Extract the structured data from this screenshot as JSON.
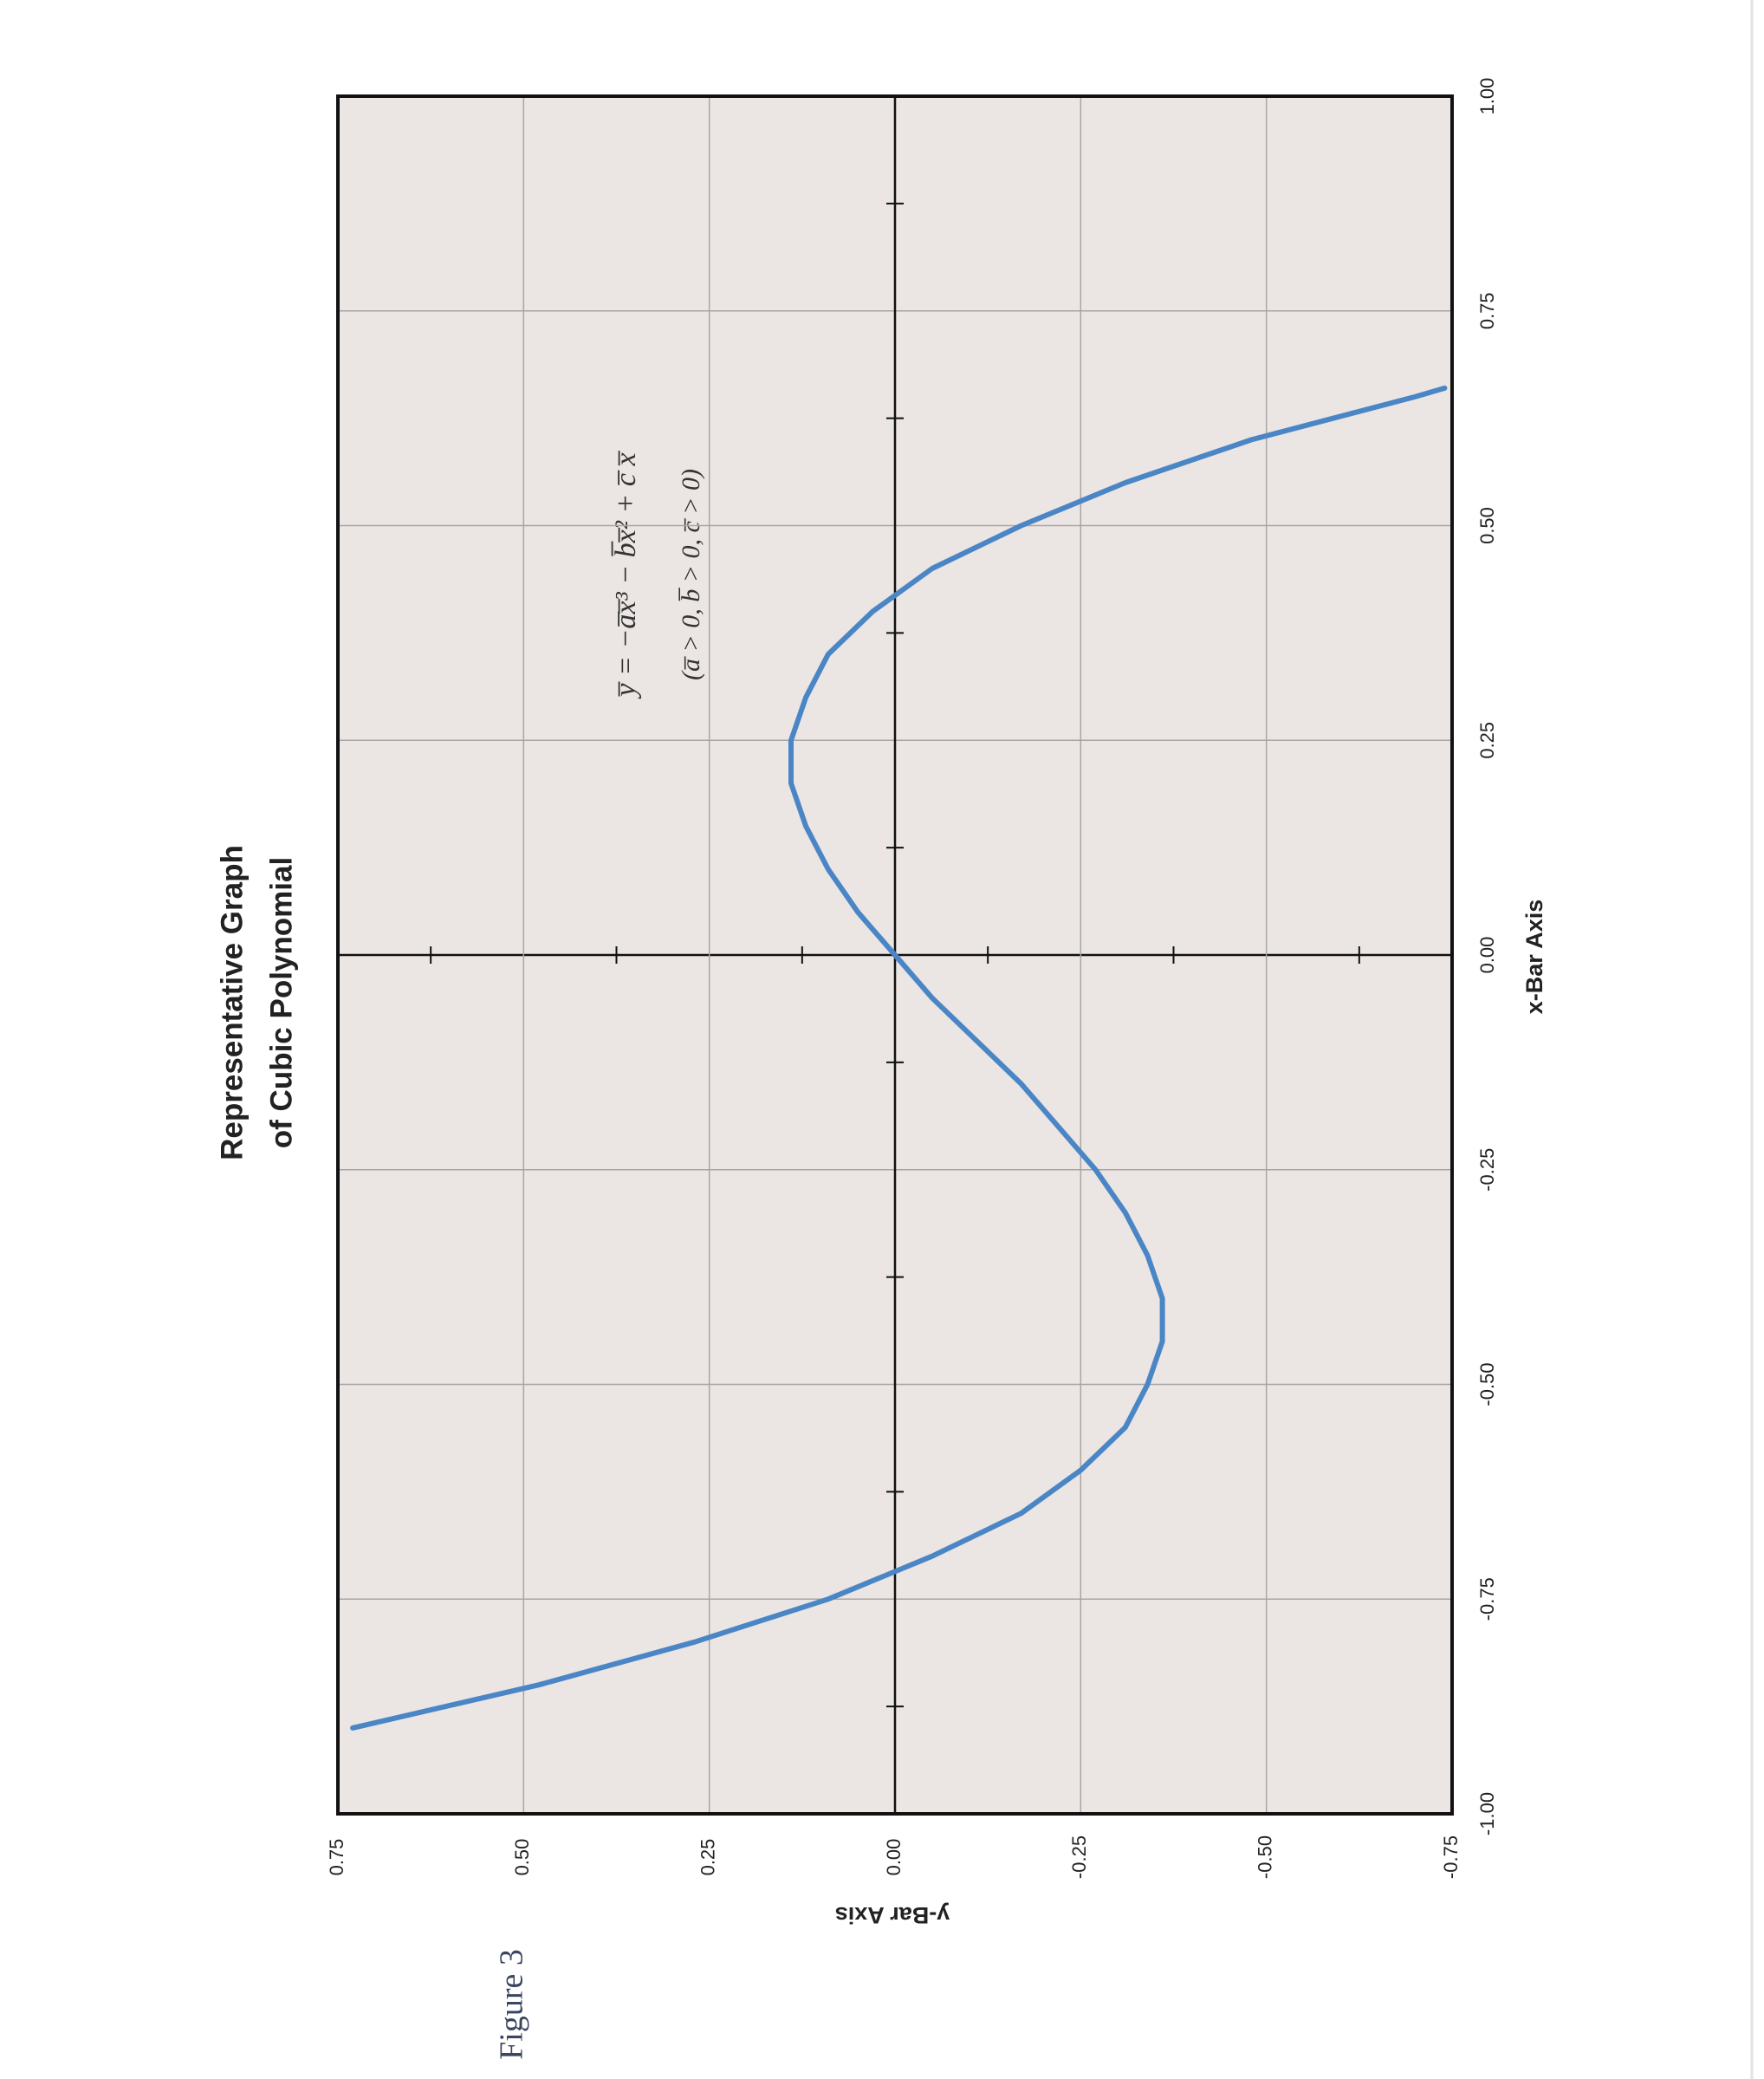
{
  "chart_data": {
    "type": "line",
    "title": [
      "Representative Graph",
      "of Cubic Polynomial"
    ],
    "x_label": "x-Bar Axis",
    "y_label": "y-Bar Axis",
    "annotations": [
      "y̅ = −a̅x̅³ − b̅x̅² + c̅ x̅",
      "(a̅ > 0, b̅ > 0, c̅ > 0)"
    ],
    "caption": "Figure 3",
    "x": [
      -0.9,
      -0.85,
      -0.8,
      -0.75,
      -0.7,
      -0.65,
      -0.6,
      -0.55,
      -0.5,
      -0.45,
      -0.4,
      -0.35,
      -0.3,
      -0.25,
      -0.2,
      -0.15,
      -0.1,
      -0.05,
      0,
      0.05,
      0.1,
      0.15,
      0.2,
      0.25,
      0.3,
      0.35,
      0.4,
      0.45,
      0.5,
      0.55,
      0.6,
      0.65,
      0.66
    ],
    "values": [
      0.73,
      0.48,
      0.27,
      0.09,
      -0.05,
      -0.17,
      -0.25,
      -0.31,
      -0.34,
      -0.36,
      -0.36,
      -0.34,
      -0.31,
      -0.27,
      -0.22,
      -0.17,
      -0.11,
      -0.05,
      0,
      0.05,
      0.09,
      0.12,
      0.14,
      0.14,
      0.12,
      0.09,
      0.03,
      -0.05,
      -0.17,
      -0.31,
      -0.48,
      -0.7,
      -0.74
    ],
    "color": "#4a86c5",
    "xlim": [
      -1,
      1
    ],
    "ylim": [
      -0.75,
      0.75
    ],
    "xticks": [
      {
        "value": -1,
        "label": "-1.00"
      },
      -0.75,
      {
        "value": -0.5,
        "label": "-0.50"
      },
      -0.25,
      {
        "value": 0,
        "label": "0.00"
      },
      0.25,
      {
        "value": 0.5,
        "label": "0.50"
      },
      0.75,
      {
        "value": 1,
        "label": "1.00"
      }
    ],
    "yticks": [
      -0.75,
      {
        "value": -0.5,
        "label": "-0.50"
      },
      -0.25,
      {
        "value": 0,
        "label": "0.00"
      },
      0.25,
      {
        "value": 0.5,
        "label": "0.50"
      },
      0.75
    ],
    "xminor": [
      -0.875,
      -0.625,
      -0.375,
      -0.125,
      0.125,
      0.375,
      0.625,
      0.875
    ],
    "yminor": [
      -0.625,
      -0.375,
      -0.125,
      0.125,
      0.375,
      0.625
    ],
    "grid": true,
    "rotated": true
  }
}
